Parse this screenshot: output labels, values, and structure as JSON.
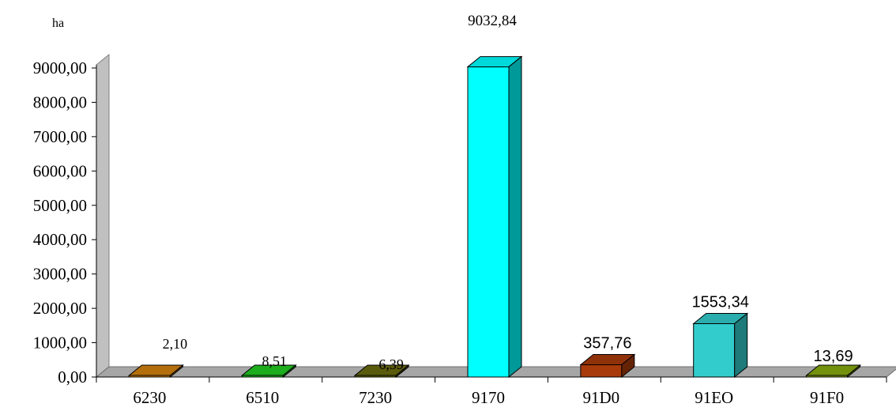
{
  "chart_data": {
    "type": "bar",
    "style": "3d-column",
    "unit_label": "ha",
    "categories": [
      "6230",
      "6510",
      "7230",
      "9170",
      "91D0",
      "91EO",
      "91F0"
    ],
    "values": [
      2.1,
      8.51,
      6.39,
      9032.84,
      357.76,
      1553.34,
      13.69
    ],
    "data_labels": [
      "2,10",
      "8,51",
      "6,39",
      "9032,84",
      "357,76",
      "1553,34",
      "13,69"
    ],
    "y_ticks": [
      "0,00",
      "1000,00",
      "2000,00",
      "3000,00",
      "4000,00",
      "5000,00",
      "6000,00",
      "7000,00",
      "8000,00",
      "9000,00"
    ],
    "ylim": [
      0,
      9000
    ],
    "grid": false,
    "legend": "none",
    "colors": [
      "#d4820f",
      "#22cc22",
      "#6b6b10",
      "#00ffff",
      "#a83a0a",
      "#33cccc",
      "#88aa10"
    ],
    "wall_color": "#c0c0c0",
    "floor_color": "#a6a6a6"
  }
}
